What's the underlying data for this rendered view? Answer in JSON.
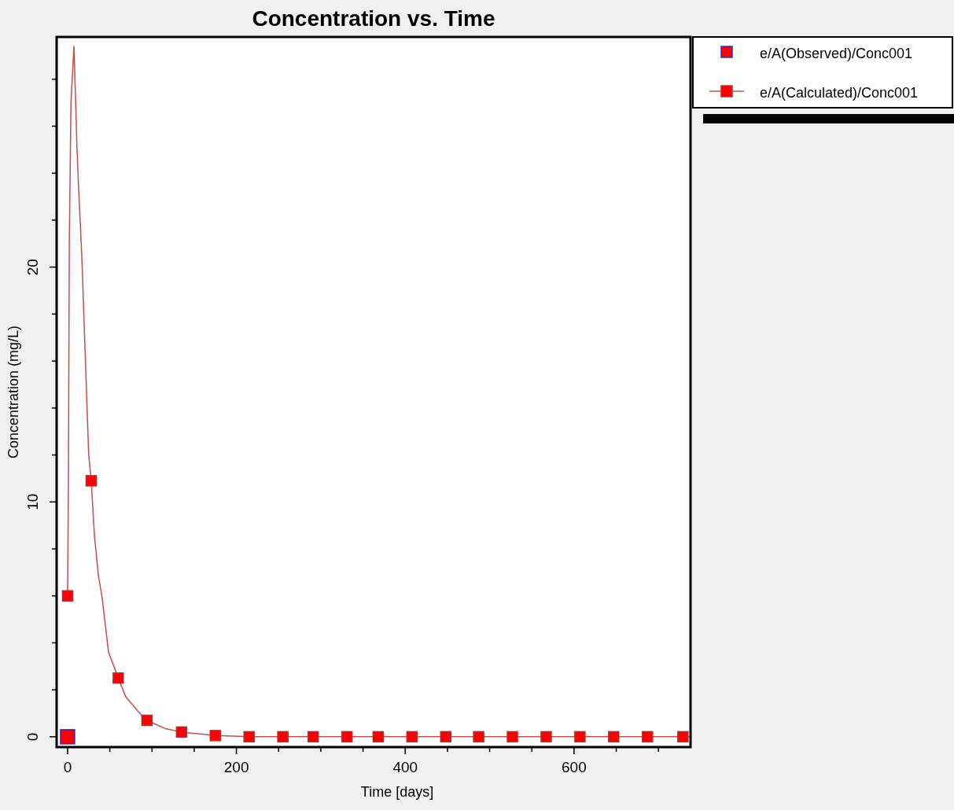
{
  "chart_data": {
    "type": "line",
    "title": "Concentration vs. Time",
    "xlabel": "Time  [days]",
    "ylabel": "Concentration (mg/L)",
    "xlim": [
      -13,
      738
    ],
    "ylim": [
      -0.44,
      29.8
    ],
    "xticks": [
      0,
      {
        "value": 50,
        "label": null
      },
      {
        "value": 100,
        "label": null
      },
      {
        "value": 150,
        "label": null
      },
      200,
      {
        "value": 250,
        "label": null
      },
      {
        "value": 300,
        "label": null
      },
      {
        "value": 350,
        "label": null
      },
      400,
      {
        "value": 450,
        "label": null
      },
      {
        "value": 500,
        "label": null
      },
      {
        "value": 550,
        "label": null
      },
      600,
      {
        "value": 650,
        "label": null
      },
      {
        "value": 700,
        "label": null
      }
    ],
    "yticks": [
      0,
      {
        "value": 2,
        "label": null
      },
      {
        "value": 4,
        "label": null
      },
      {
        "value": 6,
        "label": null
      },
      {
        "value": 8,
        "label": null
      },
      10,
      {
        "value": 12,
        "label": null
      },
      {
        "value": 14,
        "label": null
      },
      {
        "value": 16,
        "label": null
      },
      {
        "value": 18,
        "label": null
      },
      20,
      {
        "value": 22,
        "label": null
      },
      {
        "value": 24,
        "label": null
      },
      {
        "value": 26,
        "label": null
      },
      {
        "value": 28,
        "label": null
      }
    ],
    "grid": false,
    "legend": "top right",
    "series": [
      {
        "name": "e/A(Observed)/Conc001",
        "type": "scatter",
        "marker": "square",
        "color": "#ff0000",
        "x": [
          0
        ],
        "values": [
          0
        ]
      },
      {
        "name": "e/A(Calculated)/Conc001",
        "type": "line",
        "marker": "none",
        "color": "#c0504d",
        "x": [
          0,
          1,
          2,
          4,
          6.5,
          7.5,
          9.5,
          11,
          13,
          15,
          17,
          25,
          28,
          31.7,
          36.4,
          41,
          48.5,
          60,
          69,
          83,
          94,
          115.6,
          135,
          175,
          215,
          738
        ],
        "values": [
          6.0,
          11,
          21,
          27,
          28.7,
          29.4,
          27.1,
          25.2,
          23.4,
          21.9,
          20.3,
          12.0,
          10.9,
          8.6,
          6.9,
          5.9,
          3.6,
          2.5,
          1.7,
          1.1,
          0.7,
          0.35,
          0.2,
          0.05,
          0,
          0
        ]
      },
      {
        "type": "scatter",
        "marker": "square",
        "color": "#ff0000",
        "x": [
          0,
          28,
          60,
          94,
          135,
          175,
          215,
          255,
          291,
          331,
          368,
          408,
          448,
          487,
          527,
          567,
          607,
          647,
          687,
          729
        ],
        "values": [
          6.0,
          10.9,
          2.5,
          0.7,
          0.2,
          0.05,
          0,
          0,
          0,
          0,
          0,
          0,
          0,
          0,
          0,
          0,
          0,
          0,
          0,
          0
        ]
      }
    ]
  }
}
